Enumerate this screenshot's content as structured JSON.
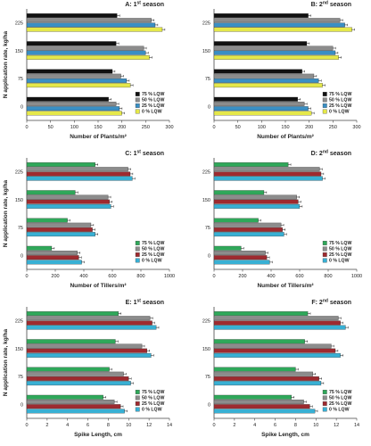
{
  "figure": {
    "colors": {
      "75 % LQW": "#111111",
      "50 % LQW": "#8c8c8c",
      "25 % LQW": "#3a8fc4",
      "0 % LQW": "#e5e84a",
      "75 % LQW (tillers/spike)": "#2fa85a",
      "50 % LQW (tillers/spike)": "#8c8c8c",
      "25 % LQW (tillers/spike)": "#9e2a2f",
      "0 % LQW (tillers/spike)": "#38b0d4",
      "text": "#222222",
      "axis": "#444444"
    }
  },
  "chart_data": [
    {
      "panel": "A",
      "type": "bar",
      "orientation": "horizontal",
      "title": "A: 1 st season",
      "title_main": "A: 1",
      "title_sup": "st",
      "title_rest": " season",
      "xlabel": "Number of Plants/m²",
      "ylabel": "N application rate, kg/ha",
      "xlim": [
        0,
        300
      ],
      "xticks": [
        0,
        50,
        100,
        150,
        200,
        250,
        300
      ],
      "xtick_labels": [
        "0",
        "50",
        "100",
        "150",
        "200",
        "250",
        "300"
      ],
      "categories": [
        "225",
        "150",
        "75",
        "0"
      ],
      "series": [
        {
          "name": "75 % LQW",
          "color": "#111111",
          "values": [
            190,
            188,
            180,
            172
          ]
        },
        {
          "name": "50 % LQW",
          "color": "#8c8c8c",
          "values": [
            262,
            246,
            198,
            188
          ]
        },
        {
          "name": "25 % LQW",
          "color": "#3a8fc4",
          "values": [
            270,
            250,
            210,
            195
          ]
        },
        {
          "name": "0 % LQW",
          "color": "#e5e84a",
          "values": [
            285,
            258,
            218,
            200
          ]
        }
      ],
      "legend_position": "bottom-right"
    },
    {
      "panel": "B",
      "type": "bar",
      "orientation": "horizontal",
      "title": "B: 2 nd season",
      "title_main": "B: 2",
      "title_sup": "nd",
      "title_rest": " season",
      "xlabel": "Number of Plants/m²",
      "ylabel": "",
      "xlim": [
        0,
        300
      ],
      "xticks": [
        0,
        50,
        100,
        150,
        200,
        250,
        300
      ],
      "xtick_labels": [
        "0",
        "50",
        "100",
        "150",
        "200",
        "250",
        "300"
      ],
      "categories": [
        "225",
        "150",
        "75",
        "0"
      ],
      "series": [
        {
          "name": "75 % LQW",
          "color": "#111111",
          "values": [
            198,
            195,
            185,
            176
          ]
        },
        {
          "name": "50 % LQW",
          "color": "#8c8c8c",
          "values": [
            265,
            250,
            210,
            190
          ]
        },
        {
          "name": "25 % LQW",
          "color": "#3a8fc4",
          "values": [
            275,
            255,
            220,
            198
          ]
        },
        {
          "name": "0 % LQW",
          "color": "#e5e84a",
          "values": [
            290,
            262,
            228,
            205
          ]
        }
      ],
      "legend_position": "bottom-right"
    },
    {
      "panel": "C",
      "type": "bar",
      "orientation": "horizontal",
      "title": "C: 1 st season",
      "title_main": "C: 1",
      "title_sup": "st",
      "title_rest": " season",
      "xlabel": "Number of Tillers/m²",
      "ylabel": "N application rate, kg/ha",
      "xlim": [
        0,
        1000
      ],
      "xticks": [
        0,
        200,
        400,
        600,
        800,
        1000
      ],
      "xtick_labels": [
        "0",
        "200",
        "400",
        "600",
        "800",
        "1000"
      ],
      "categories": [
        "225",
        "150",
        "75",
        "0"
      ],
      "series": [
        {
          "name": "75 % LQW",
          "color": "#2fa85a",
          "values": [
            480,
            340,
            285,
            175
          ]
        },
        {
          "name": "50 % LQW",
          "color": "#8c8c8c",
          "values": [
            710,
            570,
            450,
            355
          ]
        },
        {
          "name": "25 % LQW",
          "color": "#9e2a2f",
          "values": [
            725,
            580,
            460,
            365
          ]
        },
        {
          "name": "0 % LQW",
          "color": "#38b0d4",
          "values": [
            740,
            590,
            480,
            385
          ]
        }
      ],
      "legend_position": "bottom-right"
    },
    {
      "panel": "D",
      "type": "bar",
      "orientation": "horizontal",
      "title": "D: 2 nd season",
      "title_main": "D: 2",
      "title_sup": "nd",
      "title_rest": " season",
      "xlabel": "Number of Tillers/m²",
      "ylabel": "",
      "xlim": [
        0,
        1000
      ],
      "xticks": [
        0,
        200,
        400,
        600,
        800,
        1000
      ],
      "xtick_labels": [
        "0",
        "200",
        "400",
        "600",
        "800",
        "1000"
      ],
      "categories": [
        "225",
        "150",
        "75",
        "0"
      ],
      "series": [
        {
          "name": "75 % LQW",
          "color": "#2fa85a",
          "values": [
            520,
            350,
            310,
            190
          ]
        },
        {
          "name": "50 % LQW",
          "color": "#8c8c8c",
          "values": [
            740,
            580,
            470,
            360
          ]
        },
        {
          "name": "25 % LQW",
          "color": "#9e2a2f",
          "values": [
            750,
            590,
            480,
            370
          ]
        },
        {
          "name": "0 % LQW",
          "color": "#38b0d4",
          "values": [
            760,
            600,
            490,
            390
          ]
        }
      ],
      "legend_position": "bottom-right"
    },
    {
      "panel": "E",
      "type": "bar",
      "orientation": "horizontal",
      "title": "E: 1 st season",
      "title_main": "E: 1",
      "title_sup": "st",
      "title_rest": " season",
      "xlabel": "Spike Length, cm",
      "ylabel": "N application rate, kg/ha",
      "xlim": [
        0,
        14
      ],
      "xticks": [
        0,
        2,
        4,
        6,
        8,
        10,
        12,
        14
      ],
      "xtick_labels": [
        "0",
        "2",
        "4",
        "6",
        "8",
        "10",
        "12",
        "14"
      ],
      "categories": [
        "225",
        "150",
        "75",
        "0"
      ],
      "series": [
        {
          "name": "75 % LQW",
          "color": "#2fa85a",
          "values": [
            9.0,
            8.7,
            8.1,
            7.5
          ]
        },
        {
          "name": "50 % LQW",
          "color": "#8c8c8c",
          "values": [
            12.1,
            11.3,
            9.5,
            8.6
          ]
        },
        {
          "name": "25 % LQW",
          "color": "#9e2a2f",
          "values": [
            12.3,
            11.8,
            10.0,
            9.2
          ]
        },
        {
          "name": "0 % LQW",
          "color": "#38b0d4",
          "values": [
            12.7,
            12.2,
            10.2,
            9.6
          ]
        }
      ],
      "legend_position": "bottom-right"
    },
    {
      "panel": "F",
      "type": "bar",
      "orientation": "horizontal",
      "title": "F: 2 nd season",
      "title_main": "F: 2",
      "title_sup": "nd",
      "title_rest": " season",
      "xlabel": "Spike Length, cm",
      "ylabel": "",
      "xlim": [
        0,
        14
      ],
      "xticks": [
        0,
        2,
        4,
        6,
        8,
        10,
        12,
        14
      ],
      "xtick_labels": [
        "0",
        "2",
        "4",
        "6",
        "8",
        "10",
        "12",
        "14"
      ],
      "categories": [
        "225",
        "150",
        "75",
        "0"
      ],
      "series": [
        {
          "name": "75 % LQW",
          "color": "#2fa85a",
          "values": [
            9.2,
            8.9,
            8.0,
            7.6
          ]
        },
        {
          "name": "50 % LQW",
          "color": "#8c8c8c",
          "values": [
            12.2,
            11.5,
            9.7,
            8.8
          ]
        },
        {
          "name": "25 % LQW",
          "color": "#9e2a2f",
          "values": [
            12.4,
            11.9,
            10.3,
            9.4
          ]
        },
        {
          "name": "0 % LQW",
          "color": "#38b0d4",
          "values": [
            12.9,
            12.4,
            10.5,
            9.9
          ]
        }
      ],
      "legend_position": "bottom-right"
    }
  ]
}
